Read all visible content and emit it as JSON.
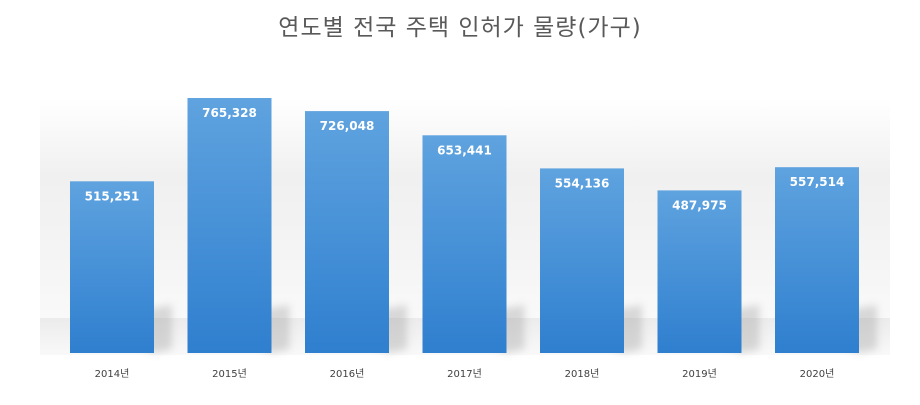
{
  "chart_data": {
    "type": "bar",
    "title": "연도별 전국 주택 인허가 물량(가구)",
    "categories": [
      "2014년",
      "2015년",
      "2016년",
      "2017년",
      "2018년",
      "2019년",
      "2020년"
    ],
    "series": [
      {
        "values": [
          515251,
          765328,
          726048,
          653441,
          554136,
          487975,
          557514
        ],
        "value_labels": [
          "515,251",
          "765,328",
          "726,048",
          "653,441",
          "554,136",
          "487,975",
          "557,514"
        ]
      }
    ],
    "ylim": [
      0,
      765328
    ],
    "grid": false,
    "legend": "none",
    "colors": {
      "bar_top": "#5fa3df",
      "bar_bottom": "#2f7fcf",
      "label": "#ffffff",
      "title": "#595959",
      "tick": "#404040"
    }
  }
}
